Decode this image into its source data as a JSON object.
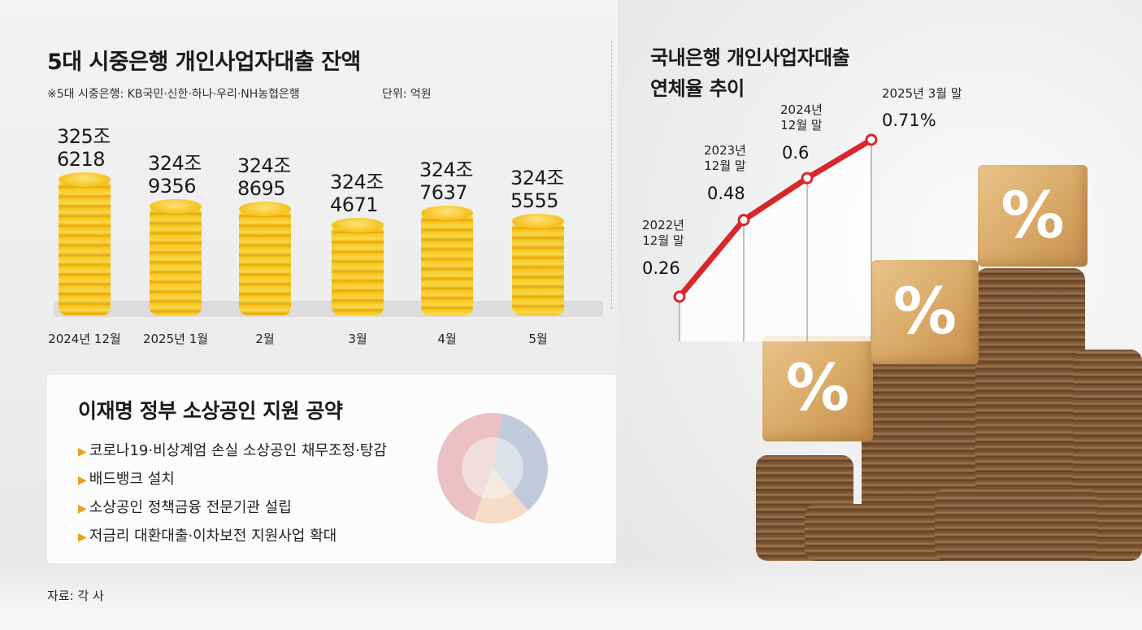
{
  "left": {
    "title": "5대 시중은행 개인사업자대출 잔액",
    "subtitle": "※5대 시중은행: KB국민·신한·하나·우리·NH농협은행",
    "unit": "단위: 억원"
  },
  "right": {
    "title_line1": "국내은행 개인사업자대출",
    "title_line2": "연체율 추이"
  },
  "chart_data": [
    {
      "type": "bar",
      "title": "5대 시중은행 개인사업자대출 잔액",
      "unit": "억원",
      "categories": [
        "2024년 12월",
        "2025년 1월",
        "2월",
        "3월",
        "4월",
        "5월"
      ],
      "values": [
        3256218,
        3249356,
        3248695,
        3244671,
        3247637,
        3245555
      ],
      "label_top": [
        "325조",
        "324조",
        "324조",
        "324조",
        "324조",
        "324조"
      ],
      "label_bottom": [
        "6218",
        "9356",
        "8695",
        "4671",
        "7637",
        "5555"
      ]
    },
    {
      "type": "line",
      "title": "국내은행 개인사업자대출 연체율 추이",
      "categories": [
        "2022년 12월 말",
        "2023년 12월 말",
        "2024년 12월 말",
        "2025년 3월 말"
      ],
      "label_year": [
        "2022년",
        "2023년",
        "2024년",
        "2025년 3월 말"
      ],
      "label_month": [
        "12월 말",
        "12월 말",
        "12월 말",
        ""
      ],
      "values": [
        0.26,
        0.48,
        0.6,
        0.71
      ],
      "value_labels": [
        "0.26",
        "0.48",
        "0.6",
        "0.71%"
      ],
      "color": "#d8262b"
    }
  ],
  "policy": {
    "title": "이재명 정부 소상공인 지원 공약",
    "items": [
      "코로나19·비상계엄 손실 소상공인 채무조정·탕감",
      "배드뱅크 설치",
      "소상공인 정책금융 전문기관 설립",
      "저금리 대환대출·이차보전 지원사업 확대"
    ]
  },
  "cube_symbol": "%",
  "source": "자료: 각 사",
  "colors": {
    "line": "#d8262b",
    "coin": "#f6c01a",
    "bullet": "#e8a21a"
  }
}
